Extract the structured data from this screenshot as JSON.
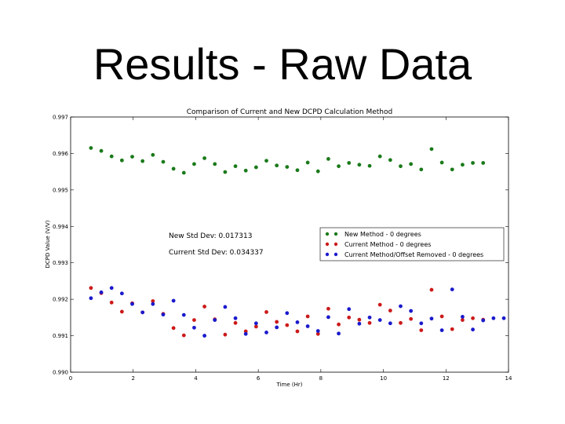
{
  "slide": {
    "title": "Results - Raw Data"
  },
  "chart_data": {
    "type": "scatter",
    "title": "Comparison of Current and New DCPD Calculation Method",
    "xlabel": "Time (Hr)",
    "ylabel": "DCPD Value (V/V)",
    "xlim": [
      0,
      14
    ],
    "ylim": [
      0.99,
      0.997
    ],
    "x_ticks": [
      "0",
      "2",
      "4",
      "6",
      "8",
      "10",
      "12",
      "14"
    ],
    "y_ticks": [
      "0.990",
      "0.991",
      "0.992",
      "0.993",
      "0.994",
      "0.995",
      "0.996",
      "0.997"
    ],
    "y_tick_values": [
      0.99,
      0.991,
      0.992,
      0.993,
      0.994,
      0.995,
      0.996,
      0.997
    ],
    "grid": false,
    "legend_position": "center-right",
    "annotations": [
      "New Std Dev: 0.017313",
      "Current Std Dev: 0.034337"
    ],
    "series": [
      {
        "name": "New Method - 0 degrees",
        "color": "#1a7a1a",
        "points": [
          [
            0.65,
            0.99615
          ],
          [
            0.98,
            0.99607
          ],
          [
            1.31,
            0.99592
          ],
          [
            1.64,
            0.99581
          ],
          [
            1.97,
            0.99591
          ],
          [
            2.3,
            0.99579
          ],
          [
            2.63,
            0.99596
          ],
          [
            2.96,
            0.99577
          ],
          [
            3.29,
            0.99558
          ],
          [
            3.62,
            0.99547
          ],
          [
            3.95,
            0.99571
          ],
          [
            4.28,
            0.99587
          ],
          [
            4.61,
            0.99571
          ],
          [
            4.94,
            0.99549
          ],
          [
            5.27,
            0.99565
          ],
          [
            5.6,
            0.99553
          ],
          [
            5.93,
            0.99562
          ],
          [
            6.26,
            0.9958
          ],
          [
            6.59,
            0.99567
          ],
          [
            6.92,
            0.99563
          ],
          [
            7.25,
            0.99554
          ],
          [
            7.58,
            0.99575
          ],
          [
            7.91,
            0.99551
          ],
          [
            8.24,
            0.99585
          ],
          [
            8.57,
            0.99565
          ],
          [
            8.9,
            0.99574
          ],
          [
            9.23,
            0.99569
          ],
          [
            9.56,
            0.99566
          ],
          [
            9.89,
            0.99592
          ],
          [
            10.22,
            0.99582
          ],
          [
            10.55,
            0.99565
          ],
          [
            10.88,
            0.99571
          ],
          [
            11.21,
            0.99556
          ],
          [
            11.54,
            0.99612
          ],
          [
            11.87,
            0.99575
          ],
          [
            12.2,
            0.99556
          ],
          [
            12.53,
            0.99569
          ],
          [
            12.86,
            0.99574
          ],
          [
            13.19,
            0.99574
          ]
        ]
      },
      {
        "name": "Current Method - 0 degrees",
        "color": "#cc1a1a",
        "points": [
          [
            0.65,
            0.99231
          ],
          [
            0.98,
            0.99217
          ],
          [
            1.31,
            0.99191
          ],
          [
            1.64,
            0.99166
          ],
          [
            1.97,
            0.99189
          ],
          [
            2.3,
            0.99164
          ],
          [
            2.63,
            0.99195
          ],
          [
            2.96,
            0.9916
          ],
          [
            3.29,
            0.99121
          ],
          [
            3.62,
            0.99101
          ],
          [
            3.95,
            0.99143
          ],
          [
            4.28,
            0.9918
          ],
          [
            4.61,
            0.99145
          ],
          [
            4.94,
            0.99103
          ],
          [
            5.27,
            0.99135
          ],
          [
            5.6,
            0.99112
          ],
          [
            5.93,
            0.99125
          ],
          [
            6.26,
            0.99165
          ],
          [
            6.59,
            0.99138
          ],
          [
            6.92,
            0.99129
          ],
          [
            7.25,
            0.99112
          ],
          [
            7.58,
            0.99153
          ],
          [
            7.91,
            0.99105
          ],
          [
            8.24,
            0.99174
          ],
          [
            8.57,
            0.99131
          ],
          [
            8.9,
            0.9915
          ],
          [
            9.23,
            0.99144
          ],
          [
            9.56,
            0.99135
          ],
          [
            9.89,
            0.99185
          ],
          [
            10.22,
            0.99169
          ],
          [
            10.55,
            0.99135
          ],
          [
            10.88,
            0.99146
          ],
          [
            11.21,
            0.99115
          ],
          [
            11.54,
            0.99226
          ],
          [
            11.87,
            0.99153
          ],
          [
            12.2,
            0.99118
          ],
          [
            12.53,
            0.99143
          ],
          [
            12.86,
            0.99148
          ],
          [
            13.19,
            0.99144
          ]
        ]
      },
      {
        "name": "Current Method/Offset Removed - 0 degrees",
        "color": "#1a1acc",
        "points": [
          [
            0.65,
            0.99203
          ],
          [
            0.98,
            0.99219
          ],
          [
            1.31,
            0.99231
          ],
          [
            1.64,
            0.99216
          ],
          [
            1.97,
            0.99187
          ],
          [
            2.3,
            0.99164
          ],
          [
            2.63,
            0.99187
          ],
          [
            2.96,
            0.99158
          ],
          [
            3.29,
            0.99196
          ],
          [
            3.62,
            0.99157
          ],
          [
            3.95,
            0.99122
          ],
          [
            4.28,
            0.991
          ],
          [
            4.61,
            0.99143
          ],
          [
            4.94,
            0.99179
          ],
          [
            5.27,
            0.99148
          ],
          [
            5.6,
            0.99105
          ],
          [
            5.93,
            0.99134
          ],
          [
            6.26,
            0.99109
          ],
          [
            6.59,
            0.99123
          ],
          [
            6.92,
            0.99162
          ],
          [
            7.25,
            0.99137
          ],
          [
            7.58,
            0.99126
          ],
          [
            7.91,
            0.99113
          ],
          [
            8.24,
            0.99151
          ],
          [
            8.57,
            0.99106
          ],
          [
            8.9,
            0.99173
          ],
          [
            9.23,
            0.99133
          ],
          [
            9.56,
            0.9915
          ],
          [
            9.89,
            0.99143
          ],
          [
            10.22,
            0.99134
          ],
          [
            10.55,
            0.99181
          ],
          [
            10.88,
            0.99168
          ],
          [
            11.21,
            0.99134
          ],
          [
            11.54,
            0.99147
          ],
          [
            11.87,
            0.99115
          ],
          [
            12.2,
            0.99227
          ],
          [
            12.53,
            0.99152
          ],
          [
            12.86,
            0.99117
          ],
          [
            13.19,
            0.99142
          ],
          [
            13.52,
            0.99148
          ],
          [
            13.85,
            0.99148
          ]
        ]
      }
    ]
  }
}
